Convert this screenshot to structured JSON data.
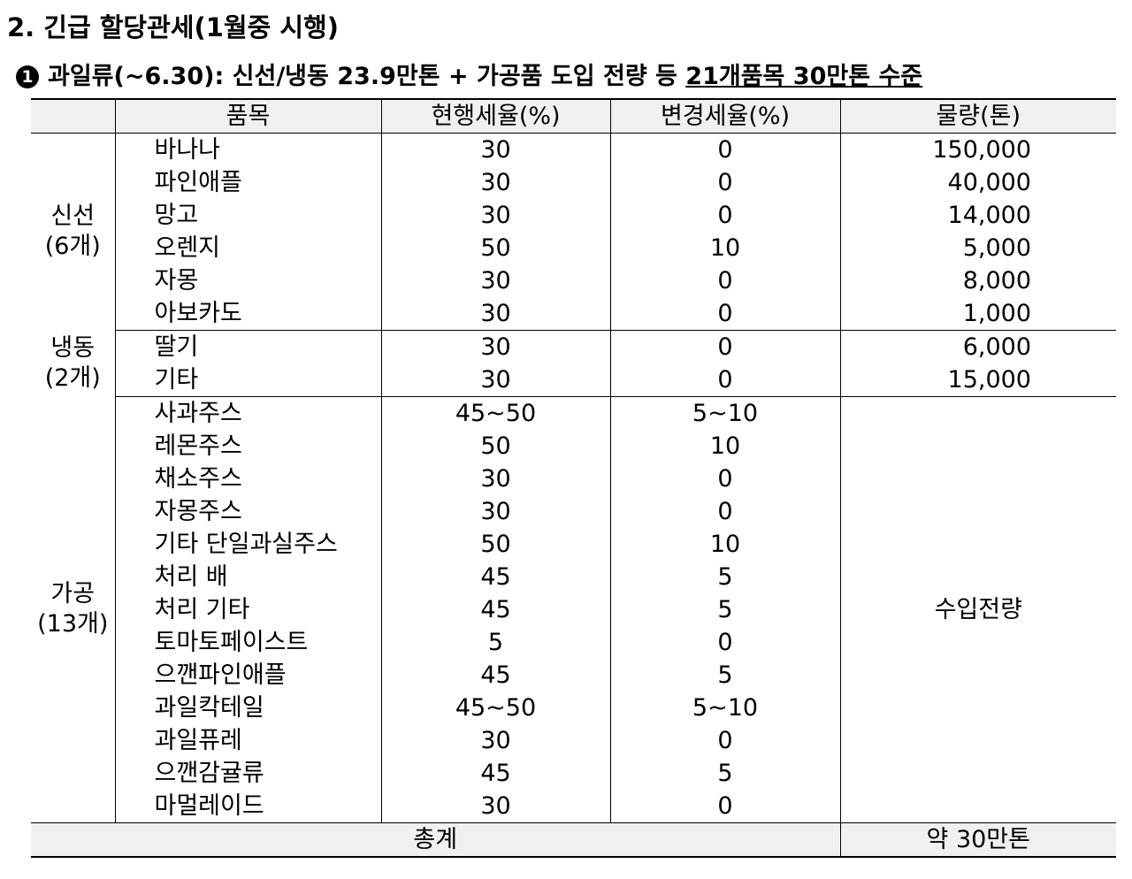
{
  "heading": "2. 긴급 할당관세(1월중 시행)",
  "subheading": {
    "bullet": "1",
    "text": "과일류(~6.30): 신선/냉동 23.9만톤 + 가공품 도입 전량 등 ",
    "underlined": "21개품목 30만톤 수준"
  },
  "table": {
    "headers": [
      "",
      "품목",
      "현행세율(%)",
      "변경세율(%)",
      "물량(톤)"
    ],
    "groups": [
      {
        "label": "신선",
        "count": "(6개)",
        "rows": [
          [
            "바나나",
            "30",
            "0",
            "150,000"
          ],
          [
            "파인애플",
            "30",
            "0",
            "40,000"
          ],
          [
            "망고",
            "30",
            "0",
            "14,000"
          ],
          [
            "오렌지",
            "50",
            "10",
            "5,000"
          ],
          [
            "자몽",
            "30",
            "0",
            "8,000"
          ],
          [
            "아보카도",
            "30",
            "0",
            "1,000"
          ]
        ]
      },
      {
        "label": "냉동",
        "count": "(2개)",
        "rows": [
          [
            "딸기",
            "30",
            "0",
            "6,000"
          ],
          [
            "기타",
            "30",
            "0",
            "15,000"
          ]
        ]
      },
      {
        "label": "가공",
        "count": "(13개)",
        "merged_quantity": "수입전량",
        "rows": [
          [
            "사과주스",
            "45~50",
            "5~10"
          ],
          [
            "레몬주스",
            "50",
            "10"
          ],
          [
            "채소주스",
            "30",
            "0"
          ],
          [
            "자몽주스",
            "30",
            "0"
          ],
          [
            "기타 단일과실주스",
            "50",
            "10"
          ],
          [
            "처리 배",
            "45",
            "5"
          ],
          [
            "처리 기타",
            "45",
            "5"
          ],
          [
            "토마토페이스트",
            "5",
            "0"
          ],
          [
            "으깬파인애플",
            "45",
            "5"
          ],
          [
            "과일칵테일",
            "45~50",
            "5~10"
          ],
          [
            "과일퓨레",
            "30",
            "0"
          ],
          [
            "으깬감귤류",
            "45",
            "5"
          ],
          [
            "마멀레이드",
            "30",
            "0"
          ]
        ]
      }
    ],
    "total": {
      "label": "총계",
      "value": "약 30만톤"
    }
  }
}
